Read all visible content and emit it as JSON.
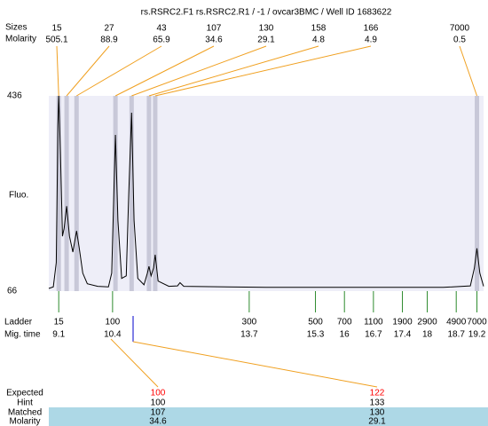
{
  "header": {
    "title": "rs.RSRC2.F1   rs.RSRC2.R1  / -1 / ovcar3BMC / Well ID 1683622"
  },
  "chart_data": {
    "type": "electropherogram",
    "y_label": "Fluo.",
    "ylim": [
      66,
      436
    ],
    "yticks": [
      66,
      436
    ],
    "xlim": [
      8.86,
      19.36
    ],
    "plot_fill": "#eeeef8",
    "band_color": "#c8c8d8",
    "link_color": "#f0a020",
    "ladder_color": "#2e8b2e",
    "peaks": {
      "label_sizes": "Sizes",
      "label_molarity": "Molarity",
      "sizes": [
        15,
        27,
        43,
        107,
        130,
        158,
        166,
        7000
      ],
      "molarity": [
        505.1,
        88.9,
        65.9,
        34.6,
        29.1,
        4.8,
        4.9,
        0.5
      ],
      "times": [
        9.1,
        9.29,
        9.53,
        10.47,
        10.86,
        11.28,
        11.43,
        19.2
      ]
    },
    "ladder": {
      "label": "Ladder",
      "time_label": "Mig. time",
      "sizes": [
        15,
        100,
        300,
        500,
        700,
        1100,
        1900,
        2900,
        4900,
        7000
      ],
      "times": [
        9.1,
        10.4,
        13.7,
        15.3,
        16,
        16.7,
        17.4,
        18,
        18.7,
        19.2
      ]
    },
    "trace": {
      "color": "#000000",
      "x": [
        8.86,
        8.97,
        9.04,
        9.08,
        9.1,
        9.14,
        9.19,
        9.23,
        9.29,
        9.36,
        9.44,
        9.53,
        9.59,
        9.68,
        9.79,
        10.04,
        10.3,
        10.38,
        10.43,
        10.47,
        10.53,
        10.62,
        10.73,
        10.79,
        10.86,
        10.92,
        11.01,
        11.16,
        11.24,
        11.28,
        11.33,
        11.39,
        11.43,
        11.5,
        11.76,
        11.97,
        12.03,
        12.12,
        14.11,
        18.39,
        19.04,
        19.14,
        19.2,
        19.27,
        19.36
      ],
      "values": [
        71,
        74,
        120,
        380,
        436,
        330,
        170,
        185,
        227,
        170,
        140,
        180,
        150,
        100,
        80,
        75,
        74,
        100,
        250,
        362,
        200,
        90,
        95,
        250,
        404,
        200,
        90,
        78,
        100,
        113,
        95,
        110,
        135,
        85,
        75,
        76,
        82,
        75,
        73,
        73,
        76,
        110,
        147,
        100,
        75
      ]
    }
  },
  "matching": {
    "row_labels": [
      "Expected",
      "Hint",
      "Matched",
      "Molarity"
    ],
    "expected": [
      100,
      122
    ],
    "hint": [
      100,
      133
    ],
    "matched": [
      107,
      130
    ],
    "molarity": [
      34.6,
      29.1
    ],
    "expected_color": "#ff0000",
    "row_fill": "#add8e6"
  }
}
